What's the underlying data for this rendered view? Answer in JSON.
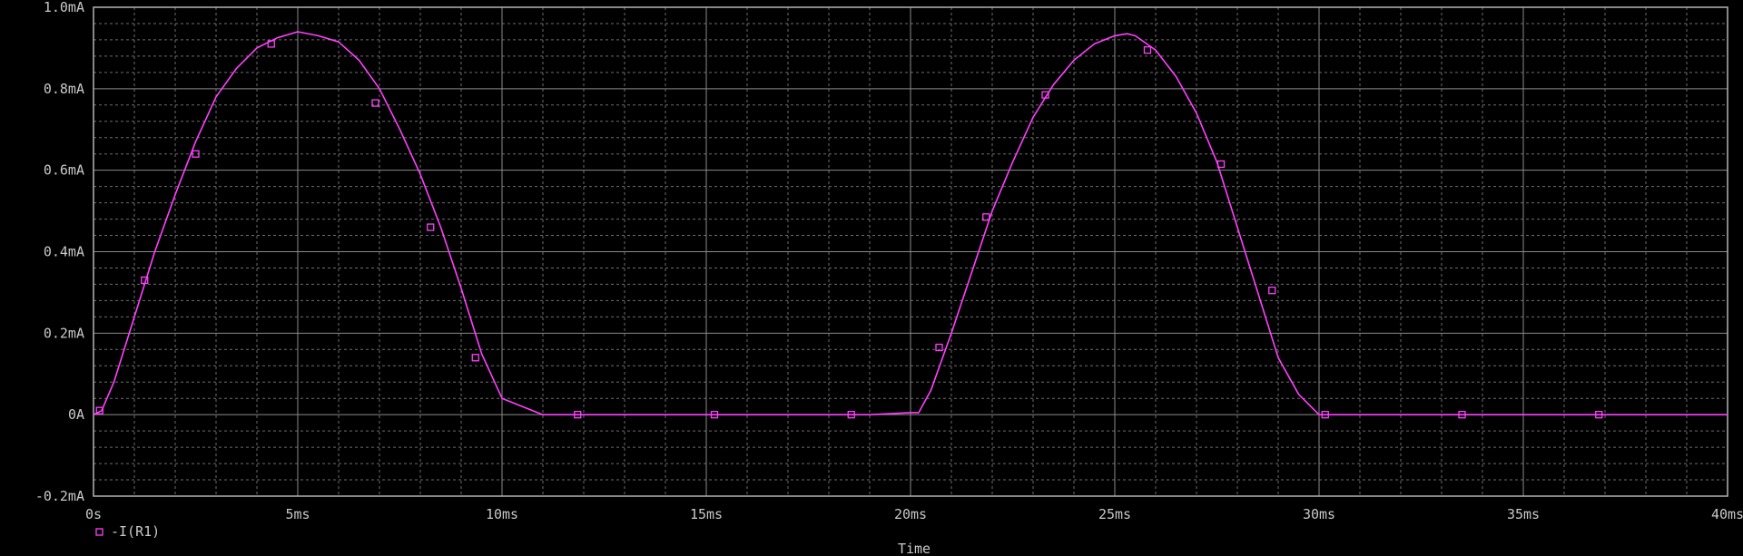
{
  "chart_data": {
    "type": "line",
    "title": "",
    "xlabel": "Time",
    "ylabel": "",
    "xlim": [
      0,
      40
    ],
    "ylim": [
      -0.2,
      1.0
    ],
    "x_unit": "ms",
    "y_unit": "mA",
    "x_ticks": [
      0,
      5,
      10,
      15,
      20,
      25,
      30,
      35,
      40
    ],
    "x_tick_labels": [
      "0s",
      "5ms",
      "10ms",
      "15ms",
      "20ms",
      "25ms",
      "30ms",
      "35ms",
      "40ms"
    ],
    "y_ticks": [
      -0.2,
      0,
      0.2,
      0.4,
      0.6,
      0.8,
      1.0
    ],
    "y_tick_labels": [
      "-0.2mA",
      "0A",
      "0.2mA",
      "0.4mA",
      "0.6mA",
      "0.8mA",
      "1.0mA"
    ],
    "grid": true,
    "minor_grid": true,
    "legend_position": "bottom-left",
    "colors": {
      "background": "#000000",
      "axes": "#b4b4b4",
      "grid_major": "#8a8a8a",
      "grid_minor": "#6e6e6e",
      "text": "#c8c8c8",
      "series": "#ff40ff"
    },
    "series": [
      {
        "name": "-I(R1)",
        "marker": "square",
        "x": [
          0,
          0.2,
          0.5,
          1.0,
          1.5,
          2.0,
          2.5,
          3.0,
          3.5,
          4.0,
          4.5,
          5.0,
          5.5,
          6.0,
          6.5,
          7.0,
          7.5,
          8.0,
          8.5,
          9.0,
          9.5,
          10.0,
          10.5,
          11.0,
          12.0,
          13.0,
          14.0,
          15.0,
          16.0,
          17.0,
          18.0,
          19.0,
          20.0,
          20.2,
          20.5,
          21.0,
          21.5,
          22.0,
          22.5,
          23.0,
          23.5,
          24.0,
          24.5,
          25.0,
          25.3,
          25.5,
          26.0,
          26.5,
          27.0,
          27.5,
          28.0,
          28.5,
          29.0,
          29.5,
          30.0,
          30.2,
          31.0,
          32.0,
          33.0,
          34.0,
          35.0,
          36.0,
          37.0,
          38.0,
          38.4,
          40.0
        ],
        "y": [
          0,
          0.01,
          0.08,
          0.24,
          0.4,
          0.54,
          0.67,
          0.78,
          0.85,
          0.9,
          0.925,
          0.94,
          0.93,
          0.915,
          0.87,
          0.8,
          0.7,
          0.59,
          0.46,
          0.31,
          0.15,
          0.04,
          0.02,
          0,
          0,
          0,
          0,
          0,
          0,
          0,
          0,
          0,
          0.005,
          0.005,
          0.06,
          0.2,
          0.35,
          0.5,
          0.62,
          0.73,
          0.81,
          0.87,
          0.91,
          0.93,
          0.935,
          0.93,
          0.895,
          0.83,
          0.74,
          0.62,
          0.46,
          0.3,
          0.14,
          0.05,
          0,
          0,
          0,
          0,
          0,
          0,
          0,
          0,
          0,
          0,
          0,
          0
        ]
      }
    ],
    "marker_x": [
      0.15,
      1.25,
      2.5,
      4.35,
      6.9,
      8.25,
      9.35,
      11.85,
      15.2,
      18.55,
      20.7,
      21.85,
      23.3,
      25.8,
      27.6,
      28.85,
      30.15,
      33.5,
      36.85
    ],
    "marker_y": [
      0.01,
      0.33,
      0.64,
      0.91,
      0.765,
      0.46,
      0.14,
      0,
      0,
      0,
      0.165,
      0.485,
      0.785,
      0.895,
      0.615,
      0.305,
      0,
      0,
      0
    ]
  }
}
